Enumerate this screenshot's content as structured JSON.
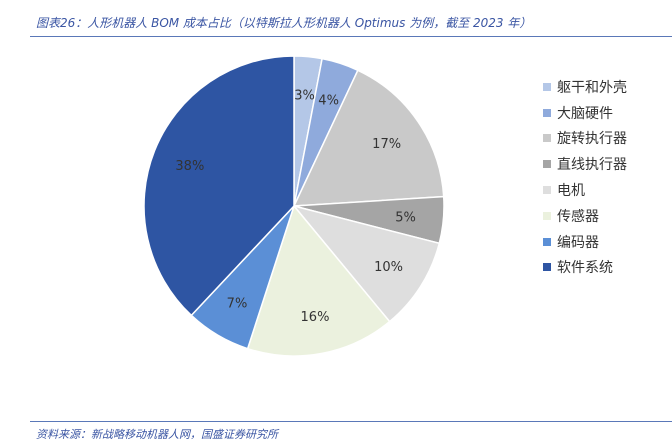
{
  "header": {
    "title": "图表26：人形机器人 BOM 成本占比（以特斯拉人形机器人 Optimus 为例，截至 2023 年）"
  },
  "footer": {
    "source": "资料来源：新战略移动机器人网，国盛证券研究所"
  },
  "chart_data": {
    "type": "pie",
    "title": "",
    "legend_position": "right",
    "slices": [
      {
        "name": "躯干和外壳",
        "value": 3,
        "label": "3%",
        "color": "#b4c7e7",
        "label_color": "#333333"
      },
      {
        "name": "大脑硬件",
        "value": 4,
        "label": "4%",
        "color": "#8faadc",
        "label_color": "#333333"
      },
      {
        "name": "旋转执行器",
        "value": 17,
        "label": "17%",
        "color": "#c9c9c9",
        "label_color": "#333333"
      },
      {
        "name": "直线执行器",
        "value": 5,
        "label": "5%",
        "color": "#a5a5a5",
        "label_color": "#333333"
      },
      {
        "name": "电机",
        "value": 10,
        "label": "10%",
        "color": "#dedede",
        "label_color": "#333333"
      },
      {
        "name": "传感器",
        "value": 16,
        "label": "16%",
        "color": "#ebf1de",
        "label_color": "#333333"
      },
      {
        "name": "编码器",
        "value": 7,
        "label": "7%",
        "color": "#5b8fd6",
        "label_color": "#ffffff"
      },
      {
        "name": "软件系统",
        "value": 38,
        "label": "38%",
        "color": "#2e55a3",
        "label_color": "#ffffff"
      }
    ]
  }
}
